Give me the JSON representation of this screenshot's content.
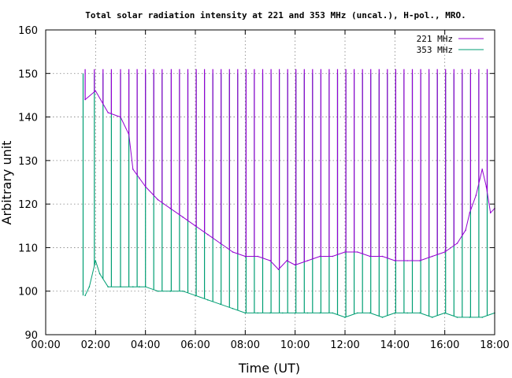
{
  "chart_data": {
    "type": "line",
    "title": "Total solar radiation intensity at 221 and 353 MHz (uncal.), H-pol., MRO.",
    "xlabel": "Time (UT)",
    "ylabel": "Arbitrary unit",
    "xlim": [
      "00:00",
      "18:00"
    ],
    "ylim": [
      90,
      160
    ],
    "x_ticks": [
      "00:00",
      "02:00",
      "04:00",
      "06:00",
      "08:00",
      "10:00",
      "12:00",
      "14:00",
      "16:00",
      "18:00"
    ],
    "y_ticks": [
      "90",
      "100",
      "110",
      "120",
      "130",
      "140",
      "150",
      "160"
    ],
    "grid": true,
    "legend_position": "top-right",
    "series": [
      {
        "name": "221 MHz",
        "color": "#9400d3",
        "x": [
          "01:35",
          "02:00",
          "02:30",
          "03:00",
          "03:20",
          "03:30",
          "03:45",
          "04:00",
          "04:30",
          "05:00",
          "05:30",
          "06:00",
          "06:30",
          "07:00",
          "07:30",
          "08:00",
          "08:30",
          "09:00",
          "09:20",
          "09:40",
          "10:00",
          "10:30",
          "11:00",
          "11:30",
          "12:00",
          "12:30",
          "13:00",
          "13:30",
          "14:00",
          "14:30",
          "15:00",
          "15:30",
          "16:00",
          "16:30",
          "16:50",
          "17:00",
          "17:15",
          "17:30",
          "17:40",
          "17:50",
          "18:00"
        ],
        "values": [
          144,
          146,
          141,
          140,
          136,
          128,
          126,
          124,
          121,
          119,
          117,
          115,
          113,
          111,
          109,
          108,
          108,
          107,
          105,
          107,
          106,
          107,
          108,
          108,
          109,
          109,
          108,
          108,
          107,
          107,
          107,
          108,
          109,
          111,
          114,
          118,
          122,
          128,
          124,
          118,
          119
        ],
        "calibration_spikes": {
          "times": [
            "01:35",
            "01:57",
            "02:18",
            "02:38",
            "03:00",
            "03:20",
            "03:40",
            "04:00",
            "04:20",
            "04:40",
            "05:02",
            "05:22",
            "05:42",
            "06:02",
            "06:22",
            "06:42",
            "07:02",
            "07:22",
            "07:42",
            "08:02",
            "08:22",
            "08:42",
            "09:02",
            "09:22",
            "09:42",
            "10:02",
            "10:22",
            "10:42",
            "11:02",
            "11:22",
            "11:42",
            "12:02",
            "12:22",
            "12:42",
            "13:02",
            "13:22",
            "13:42",
            "14:02",
            "14:22",
            "14:42",
            "15:02",
            "15:22",
            "15:42",
            "16:02",
            "16:22",
            "16:42",
            "17:02",
            "17:22",
            "17:42"
          ],
          "peak": 151
        }
      },
      {
        "name": "353 MHz",
        "color": "#009e73",
        "x": [
          "01:35",
          "01:45",
          "02:00",
          "02:10",
          "02:30",
          "03:00",
          "03:30",
          "03:45",
          "04:00",
          "04:30",
          "05:00",
          "05:30",
          "06:00",
          "06:30",
          "07:00",
          "07:30",
          "08:00",
          "08:30",
          "09:00",
          "09:30",
          "10:00",
          "10:30",
          "11:00",
          "11:30",
          "12:00",
          "12:30",
          "13:00",
          "13:30",
          "14:00",
          "14:30",
          "15:00",
          "15:30",
          "16:00",
          "16:30",
          "17:00",
          "17:30",
          "18:00"
        ],
        "values": [
          99,
          101,
          107,
          104,
          101,
          101,
          101,
          101,
          101,
          100,
          100,
          100,
          99,
          98,
          97,
          96,
          95,
          95,
          95,
          95,
          95,
          95,
          95,
          95,
          94,
          95,
          95,
          94,
          95,
          95,
          95,
          94,
          95,
          94,
          94,
          94,
          95
        ],
        "calibration_spikes": {
          "times": [
            "01:30",
            "01:57",
            "02:18",
            "02:38",
            "03:00",
            "03:20",
            "03:40",
            "04:00",
            "04:20",
            "04:40",
            "05:02",
            "05:22",
            "05:42",
            "06:02",
            "06:22",
            "06:42",
            "07:02",
            "07:22",
            "07:42",
            "08:02",
            "08:22",
            "08:42",
            "09:02",
            "09:22",
            "09:42",
            "10:02",
            "10:22",
            "10:42",
            "11:02",
            "11:22",
            "11:42",
            "12:02",
            "12:22",
            "12:42",
            "13:02",
            "13:22",
            "13:42",
            "14:02",
            "14:22",
            "14:42",
            "15:02",
            "15:22",
            "15:42",
            "16:02",
            "16:22",
            "16:42",
            "17:02",
            "17:22",
            "17:42"
          ],
          "peak": 150
        }
      }
    ]
  }
}
